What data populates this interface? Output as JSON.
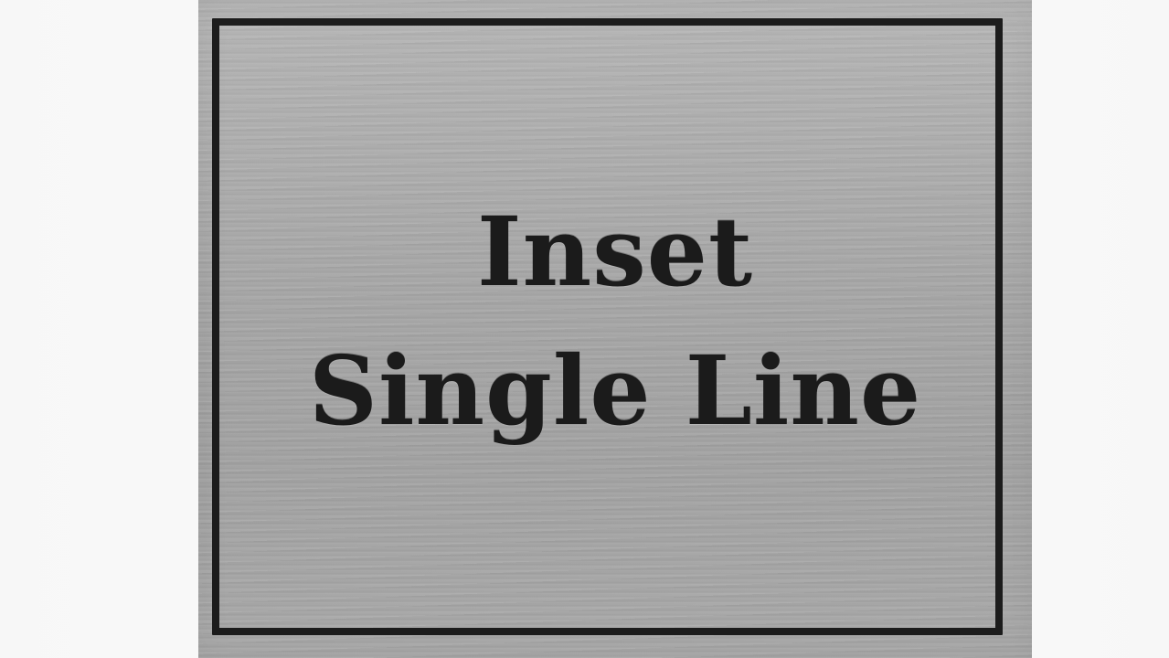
{
  "plaque": {
    "line_1": "Inset",
    "line_2": "Single Line"
  },
  "colors": {
    "background": "#f7f7f7",
    "metal": "#a9a9a9",
    "engraving": "#1c1c1c"
  }
}
